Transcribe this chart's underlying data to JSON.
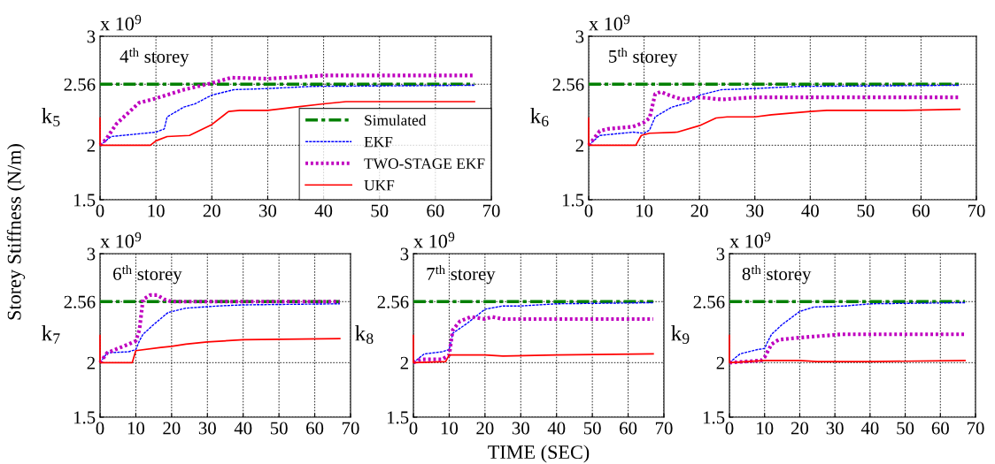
{
  "chart_data": [
    {
      "type": "line",
      "title": "4$^{th}$ storey",
      "ylabel": "k$_{5}$",
      "annotations": [
        "x 10$^{9}$",
        "Storey Stiffness (N/m)"
      ],
      "xlim": [
        0,
        70
      ],
      "xticks": [
        0,
        10,
        20,
        30,
        40,
        50,
        60,
        70
      ],
      "ylim": [
        1.5,
        3
      ],
      "yticks": [
        1.5,
        2,
        2.56,
        3
      ],
      "grid": true,
      "legend": "bottom right",
      "series": [
        {
          "name": "Simulated",
          "color": "#008000",
          "line_style": "dashdot",
          "x": [
            0,
            67
          ],
          "values": [
            2.56,
            2.56
          ]
        },
        {
          "name": "EKF",
          "color": "#0000ff",
          "line_style": "dashed",
          "x": [
            0,
            2,
            8,
            10,
            11.5,
            12,
            15,
            17,
            20,
            24,
            30,
            38,
            67
          ],
          "values": [
            2.0,
            2.08,
            2.11,
            2.12,
            2.15,
            2.26,
            2.35,
            2.38,
            2.46,
            2.51,
            2.52,
            2.54,
            2.55
          ]
        },
        {
          "name": "TWO-STAGE EKF",
          "color": "#bf00bf",
          "line_style": "dotted",
          "x": [
            0,
            1,
            3,
            7,
            10,
            15,
            20,
            23.5,
            30,
            40,
            67
          ],
          "values": [
            2.0,
            2.05,
            2.2,
            2.39,
            2.43,
            2.51,
            2.57,
            2.62,
            2.61,
            2.64,
            2.64
          ]
        },
        {
          "name": "UKF",
          "color": "#ff0000",
          "line_style": "solid",
          "x": [
            0,
            0,
            9,
            10,
            12,
            16,
            20,
            23,
            25,
            30,
            35,
            40,
            44,
            67
          ],
          "values": [
            2.25,
            2.0,
            2.0,
            2.04,
            2.08,
            2.09,
            2.19,
            2.31,
            2.32,
            2.32,
            2.35,
            2.38,
            2.4,
            2.4
          ]
        }
      ]
    },
    {
      "type": "line",
      "title": "5$^{th}$ storey",
      "ylabel": "k$_{6}$",
      "annotations": [
        "x 10$^{9}$"
      ],
      "xlim": [
        0,
        70
      ],
      "xticks": [
        0,
        10,
        20,
        30,
        40,
        50,
        60,
        70
      ],
      "ylim": [
        1.5,
        3
      ],
      "yticks": [
        1.5,
        2,
        2.56,
        3
      ],
      "grid": true,
      "series": [
        {
          "color": "#008000",
          "line_style": "dashdot",
          "x": [
            0,
            67
          ],
          "values": [
            2.56,
            2.56
          ]
        },
        {
          "color": "#0000ff",
          "line_style": "dashed",
          "x": [
            0,
            2,
            8,
            10,
            11,
            12,
            15,
            18,
            20,
            24,
            30,
            38,
            67
          ],
          "values": [
            2.0,
            2.09,
            2.12,
            2.11,
            2.14,
            2.26,
            2.35,
            2.39,
            2.46,
            2.51,
            2.52,
            2.54,
            2.55
          ]
        },
        {
          "color": "#bf00bf",
          "line_style": "dotted",
          "x": [
            0,
            2,
            3.5,
            8,
            10,
            11,
            12,
            13,
            15,
            17,
            20,
            24,
            30,
            67
          ],
          "values": [
            2.0,
            2.13,
            2.15,
            2.17,
            2.21,
            2.25,
            2.47,
            2.49,
            2.45,
            2.42,
            2.44,
            2.42,
            2.44,
            2.44
          ]
        },
        {
          "color": "#ff0000",
          "line_style": "solid",
          "x": [
            0,
            0,
            8.5,
            9.5,
            11,
            16,
            20,
            23,
            25,
            30,
            33,
            40,
            43,
            57,
            67
          ],
          "values": [
            2.25,
            2.0,
            2.0,
            2.09,
            2.11,
            2.12,
            2.18,
            2.25,
            2.26,
            2.26,
            2.28,
            2.31,
            2.32,
            2.32,
            2.33
          ]
        }
      ]
    },
    {
      "type": "line",
      "title": "6$^{th}$ storey",
      "ylabel": "k$_{7}$",
      "annotations": [
        "x 10$^{9}$"
      ],
      "xlim": [
        0,
        70
      ],
      "xticks": [
        0,
        10,
        20,
        30,
        40,
        50,
        60,
        70
      ],
      "ylim": [
        1.5,
        3
      ],
      "yticks": [
        1.5,
        2,
        2.56,
        3
      ],
      "grid": true,
      "series": [
        {
          "color": "#008000",
          "line_style": "dashdot",
          "x": [
            0,
            67
          ],
          "values": [
            2.56,
            2.56
          ]
        },
        {
          "color": "#0000ff",
          "line_style": "dashed",
          "x": [
            0,
            2,
            8,
            10,
            11,
            12,
            15,
            19,
            24,
            33,
            40,
            67
          ],
          "values": [
            2.0,
            2.09,
            2.1,
            2.12,
            2.2,
            2.26,
            2.35,
            2.46,
            2.5,
            2.52,
            2.53,
            2.54
          ]
        },
        {
          "color": "#bf00bf",
          "line_style": "dotted",
          "x": [
            0,
            2,
            8,
            10,
            11,
            12,
            14,
            16,
            18,
            20,
            25,
            67
          ],
          "values": [
            2.0,
            2.09,
            2.17,
            2.2,
            2.3,
            2.58,
            2.62,
            2.62,
            2.58,
            2.56,
            2.56,
            2.56
          ]
        },
        {
          "color": "#ff0000",
          "line_style": "solid",
          "x": [
            0,
            0,
            9,
            10,
            17,
            20,
            24,
            30,
            40,
            67
          ],
          "values": [
            2.25,
            2.0,
            2.0,
            2.11,
            2.14,
            2.15,
            2.17,
            2.19,
            2.21,
            2.22
          ]
        }
      ]
    },
    {
      "type": "line",
      "title": "7$^{th}$ storey",
      "ylabel": "k$_{8}$",
      "annotations": [
        "x 10$^{9}$",
        "TIME (SEC)"
      ],
      "xlim": [
        0,
        70
      ],
      "xticks": [
        0,
        10,
        20,
        30,
        40,
        50,
        60,
        70
      ],
      "ylim": [
        1.5,
        3
      ],
      "yticks": [
        1.5,
        2,
        2.56,
        3
      ],
      "grid": true,
      "series": [
        {
          "color": "#008000",
          "line_style": "dashdot",
          "x": [
            0,
            67
          ],
          "values": [
            2.56,
            2.56
          ]
        },
        {
          "color": "#0000ff",
          "line_style": "dashed",
          "x": [
            0,
            3,
            8,
            10,
            11,
            15,
            20,
            25,
            30,
            40,
            67
          ],
          "values": [
            2.0,
            2.08,
            2.1,
            2.12,
            2.27,
            2.36,
            2.49,
            2.52,
            2.52,
            2.54,
            2.55
          ]
        },
        {
          "color": "#bf00bf",
          "line_style": "dotted",
          "x": [
            0,
            2,
            8,
            10,
            11,
            13,
            16,
            18,
            20,
            22,
            25,
            67
          ],
          "values": [
            2.0,
            2.03,
            2.03,
            2.07,
            2.3,
            2.38,
            2.42,
            2.41,
            2.4,
            2.42,
            2.4,
            2.4
          ]
        },
        {
          "color": "#ff0000",
          "line_style": "solid",
          "x": [
            0,
            0,
            9,
            10,
            20,
            25,
            40,
            67
          ],
          "values": [
            2.25,
            2.0,
            2.01,
            2.07,
            2.07,
            2.06,
            2.07,
            2.08
          ]
        }
      ]
    },
    {
      "type": "line",
      "title": "8$^{th}$ storey",
      "ylabel": "k$_{9}$",
      "annotations": [
        "x 10$^{9}$"
      ],
      "xlim": [
        0,
        70
      ],
      "xticks": [
        0,
        10,
        20,
        30,
        40,
        50,
        60,
        70
      ],
      "ylim": [
        1.5,
        3
      ],
      "yticks": [
        1.5,
        2,
        2.56,
        3
      ],
      "grid": true,
      "series": [
        {
          "color": "#008000",
          "line_style": "dashdot",
          "x": [
            0,
            67
          ],
          "values": [
            2.56,
            2.56
          ]
        },
        {
          "color": "#0000ff",
          "line_style": "dashed",
          "x": [
            0,
            3,
            8,
            10,
            11,
            12,
            15,
            20,
            24,
            33,
            40,
            67
          ],
          "values": [
            2.0,
            2.08,
            2.12,
            2.13,
            2.2,
            2.26,
            2.35,
            2.47,
            2.51,
            2.52,
            2.54,
            2.55
          ]
        },
        {
          "color": "#bf00bf",
          "line_style": "dotted",
          "x": [
            0,
            9,
            10,
            12,
            14,
            20,
            24,
            32,
            45,
            67
          ],
          "values": [
            2.0,
            2.02,
            2.05,
            2.17,
            2.21,
            2.23,
            2.24,
            2.26,
            2.26,
            2.26
          ]
        },
        {
          "color": "#ff0000",
          "line_style": "solid",
          "x": [
            0,
            0,
            10,
            20,
            25,
            40,
            67
          ],
          "values": [
            2.25,
            2.0,
            2.02,
            2.02,
            2.01,
            2.01,
            2.02
          ]
        }
      ]
    }
  ]
}
